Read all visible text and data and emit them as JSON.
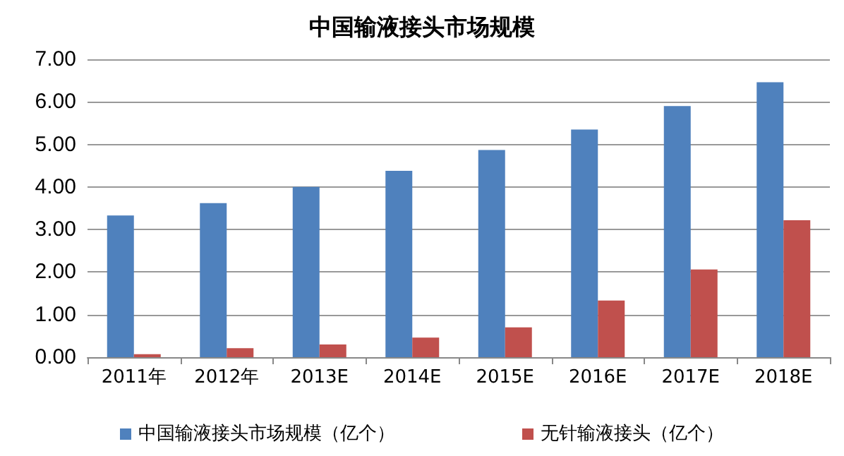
{
  "chart_data": {
    "type": "bar",
    "title": "中国输液接头市场规模",
    "categories": [
      "2011年",
      "2012年",
      "2013E",
      "2014E",
      "2015E",
      "2016E",
      "2017E",
      "2018E"
    ],
    "series": [
      {
        "name": "中国输液接头市场规模（亿个）",
        "color": "#4f81bd",
        "values": [
          3.33,
          3.62,
          4.0,
          4.38,
          4.87,
          5.35,
          5.9,
          6.46
        ]
      },
      {
        "name": "无针输液接头（亿个）",
        "color": "#c0504d",
        "values": [
          0.07,
          0.21,
          0.3,
          0.46,
          0.7,
          1.33,
          2.06,
          3.22
        ]
      }
    ],
    "ylim": [
      0,
      7
    ],
    "yticks": [
      {
        "value": 0,
        "label": "0.00"
      },
      {
        "value": 1,
        "label": "1.00"
      },
      {
        "value": 2,
        "label": "2.00"
      },
      {
        "value": 3,
        "label": "3.00"
      },
      {
        "value": 4,
        "label": "4.00"
      },
      {
        "value": 5,
        "label": "5.00"
      },
      {
        "value": 6,
        "label": "6.00"
      },
      {
        "value": 7,
        "label": "7.00"
      }
    ],
    "grid": "y",
    "legend": "bottom"
  }
}
